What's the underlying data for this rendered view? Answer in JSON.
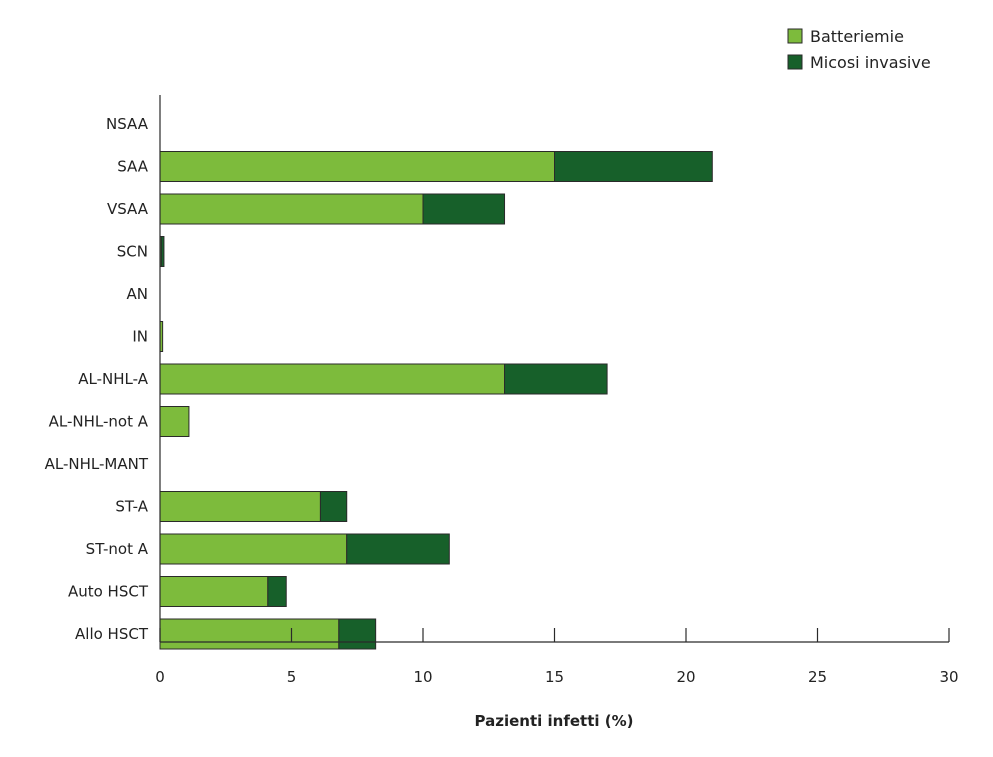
{
  "chart_data": {
    "type": "bar",
    "orientation": "horizontal",
    "stacked": true,
    "categories": [
      "NSAA",
      "SAA",
      "VSAA",
      "SCN",
      "AN",
      "IN",
      "AL-NHL-A",
      "AL-NHL-not A",
      "AL-NHL-MANT",
      "ST-A",
      "ST-not A",
      "Auto HSCT",
      "Allo HSCT"
    ],
    "series": [
      {
        "name": "Batteriemie",
        "color": "#7dbb3c",
        "values": [
          0,
          15,
          10,
          0.05,
          0,
          0.1,
          13.1,
          1.1,
          0,
          6.1,
          7.1,
          4.1,
          6.8
        ]
      },
      {
        "name": "Micosi invasive",
        "color": "#17602a",
        "values": [
          0,
          6.0,
          3.1,
          0.1,
          0,
          0,
          3.9,
          0,
          0,
          1.0,
          3.9,
          0.7,
          1.4
        ]
      }
    ],
    "xlabel": "Pazienti infetti (%)",
    "xlim": [
      0,
      30
    ],
    "xticks": [
      0,
      5,
      10,
      15,
      20,
      25,
      30
    ],
    "legend_position": "top-right",
    "grid": false
  }
}
